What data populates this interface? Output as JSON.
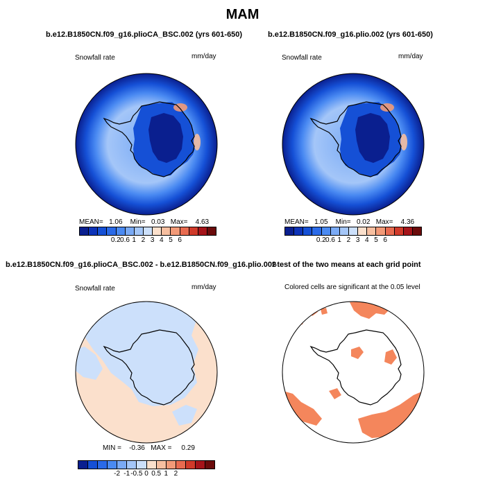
{
  "title": "MAM",
  "panels": [
    {
      "id": "p1",
      "title": "b.e12.B1850CN.f09_g16.plioCA_BSC.002 (yrs 601-650)",
      "left_label": "Snowfall rate",
      "right_label": "mm/day",
      "stats": {
        "mean_label": "MEAN=",
        "mean": "1.06",
        "min_label": "Min=",
        "min": "0.03",
        "max_label": "Max=",
        "max": "4.63"
      },
      "colorbar_ticks": [
        "0.2",
        "0.6",
        "1",
        "2",
        "3",
        "4",
        "5",
        "6"
      ]
    },
    {
      "id": "p2",
      "title": "b.e12.B1850CN.f09_g16.plio.002 (yrs 601-650)",
      "left_label": "Snowfall rate",
      "right_label": "mm/day",
      "stats": {
        "mean_label": "MEAN=",
        "mean": "1.05",
        "min_label": "Min=",
        "min": "0.02",
        "max_label": "Max=",
        "max": "4.36"
      },
      "colorbar_ticks": [
        "0.2",
        "0.6",
        "1",
        "2",
        "3",
        "4",
        "5",
        "6"
      ]
    },
    {
      "id": "p3",
      "title": "b.e12.B1850CN.f09_g16.plioCA_BSC.002 - b.e12.B1850CN.f09_g16.plio.002",
      "left_label": "Snowfall rate",
      "right_label": "mm/day",
      "stats": {
        "min_label": "MIN =",
        "min": "-0.36",
        "max_label": "MAX =",
        "max": "0.29"
      },
      "colorbar_ticks": [
        "-2",
        "-1",
        "-0.5",
        "0",
        "0.5",
        "1",
        "2"
      ]
    },
    {
      "id": "p4",
      "title": "t-test of the two means at each grid point",
      "note": "Colored cells are significant at the 0.05 level"
    }
  ],
  "colors": {
    "abs_scale": [
      "#0a1f8f",
      "#0d33b8",
      "#1550d6",
      "#2a6ae8",
      "#4a8af2",
      "#7aaaf5",
      "#a4c6f8",
      "#cce0fb",
      "#fbe0cc",
      "#f7bfa0",
      "#f29a78",
      "#e86b50",
      "#d03a2a",
      "#a5141a",
      "#6b0b0b"
    ],
    "diff_scale": [
      "#0a1f8f",
      "#1550d6",
      "#2a6ae8",
      "#4a8af2",
      "#7aaaf5",
      "#a4c6f8",
      "#cce0fb",
      "#fbe0cc",
      "#f7bfa0",
      "#f29a78",
      "#e86b50",
      "#d03a2a",
      "#a5141a",
      "#6b0b0b"
    ],
    "significant": "#f4865c"
  }
}
